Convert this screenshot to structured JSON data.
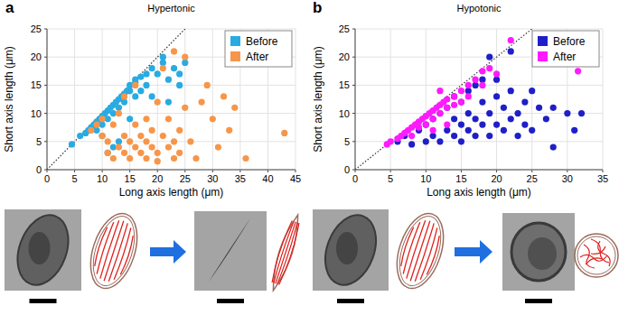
{
  "chart_data": [
    {
      "type": "scatter",
      "title": "Hypertonic",
      "annotations": [
        "a"
      ],
      "x_label": "Long axis length (μm)",
      "y_label": "Short axis length (μm)",
      "xlim": [
        0,
        45
      ],
      "ylim": [
        0,
        25
      ],
      "xticks": [
        0,
        5,
        10,
        15,
        20,
        25,
        30,
        35,
        40,
        45
      ],
      "yticks": [
        0,
        5,
        10,
        15,
        20,
        25
      ],
      "grid": true,
      "legend": "upper right",
      "marker": "circle",
      "series": [
        {
          "name": "Before",
          "color": "#29abe2",
          "x": [
            4.5,
            6,
            7,
            7.5,
            8,
            8.5,
            9,
            9,
            9.5,
            10,
            10,
            10.5,
            11,
            11,
            11.5,
            12,
            12,
            12.5,
            13,
            13,
            13.5,
            14,
            14,
            14.5,
            15,
            15,
            16,
            16,
            17,
            17,
            18,
            18,
            19,
            20,
            21,
            22,
            23,
            24,
            25,
            11,
            12,
            13,
            10,
            15,
            16,
            21,
            22,
            19,
            24
          ],
          "values": [
            4.5,
            6,
            6.5,
            7,
            7.5,
            8,
            8.5,
            7,
            9,
            9.5,
            8,
            10,
            10.5,
            9,
            11,
            11.5,
            10,
            12,
            12.5,
            11,
            13,
            13.5,
            12,
            14,
            14,
            15,
            15.5,
            13,
            16.5,
            14,
            17,
            15,
            18,
            17,
            19,
            16,
            18,
            17,
            19,
            3,
            4,
            5,
            6,
            9,
            16,
            20,
            12,
            13,
            15
          ]
        },
        {
          "name": "After",
          "color": "#f7964a",
          "x": [
            8,
            9,
            10,
            10,
            11,
            11,
            12,
            12,
            13,
            13,
            14,
            14,
            14,
            15,
            15,
            16,
            16,
            16,
            17,
            17,
            18,
            18,
            18,
            19,
            19,
            20,
            20,
            20,
            21,
            21,
            22,
            22,
            23,
            23,
            24,
            24,
            25,
            26,
            27,
            28,
            29,
            30,
            31,
            32,
            33,
            34,
            36,
            43,
            25,
            23
          ],
          "values": [
            7,
            8,
            9,
            6,
            3,
            5,
            2,
            8,
            4,
            10,
            3,
            6,
            13,
            2,
            5,
            4,
            8,
            15,
            3,
            6,
            2,
            5,
            9,
            4,
            7,
            1.5,
            3,
            12,
            6,
            18,
            4,
            9,
            2,
            5,
            3,
            7,
            20,
            5,
            2,
            12,
            15,
            9,
            4,
            13,
            7,
            11,
            2,
            6.5,
            11,
            21
          ]
        }
      ]
    },
    {
      "type": "scatter",
      "title": "Hypotonic",
      "annotations": [
        "b"
      ],
      "x_label": "Long axis length (μm)",
      "y_label": "Short axis length (μm)",
      "xlim": [
        0,
        35
      ],
      "ylim": [
        0,
        25
      ],
      "xticks": [
        0,
        5,
        10,
        15,
        20,
        25,
        30,
        35
      ],
      "yticks": [
        0,
        5,
        10,
        15,
        20,
        25
      ],
      "grid": true,
      "legend": "upper right",
      "marker": "circle",
      "series": [
        {
          "name": "Before",
          "color": "#1f1fc8",
          "x": [
            6,
            7,
            8,
            9,
            10,
            10,
            11,
            11,
            12,
            12,
            13,
            13,
            14,
            14,
            14,
            15,
            15,
            15,
            16,
            16,
            16,
            17,
            17,
            17,
            18,
            18,
            18,
            19,
            19,
            20,
            20,
            20,
            21,
            21,
            22,
            22,
            23,
            23,
            24,
            24,
            25,
            25,
            26,
            27,
            28,
            28,
            30,
            31,
            32,
            22,
            19
          ],
          "values": [
            5,
            6,
            4.5,
            7,
            5,
            8,
            6,
            9,
            5,
            10,
            7,
            11,
            6,
            9,
            13,
            5,
            8,
            12,
            7,
            10,
            14,
            6,
            9,
            15,
            8,
            12,
            16,
            6,
            10,
            8,
            13,
            16,
            7,
            11,
            9,
            14,
            10,
            6,
            12,
            8,
            14,
            7,
            11,
            9,
            4,
            11,
            10,
            7,
            10,
            21,
            20
          ]
        },
        {
          "name": "After",
          "color": "#ff1aff",
          "x": [
            4.5,
            5,
            6,
            6.5,
            7,
            7.5,
            8,
            8,
            8.5,
            9,
            9,
            9.5,
            10,
            10,
            10.5,
            11,
            11,
            11.5,
            12,
            12,
            12.5,
            13,
            13,
            14,
            14,
            15,
            15,
            16,
            16,
            17,
            18,
            18,
            19,
            20,
            22,
            31.5,
            13,
            11,
            12
          ],
          "values": [
            4.5,
            5,
            5.5,
            6,
            6.5,
            7,
            7.5,
            6,
            8,
            8.5,
            7.5,
            9,
            9.5,
            8,
            10,
            10.5,
            9,
            11,
            11.5,
            10,
            12,
            12.5,
            11,
            13,
            11.5,
            14,
            12,
            15,
            13,
            16,
            17.5,
            15,
            18,
            17,
            23,
            17.5,
            8,
            7,
            14
          ]
        }
      ]
    }
  ]
}
